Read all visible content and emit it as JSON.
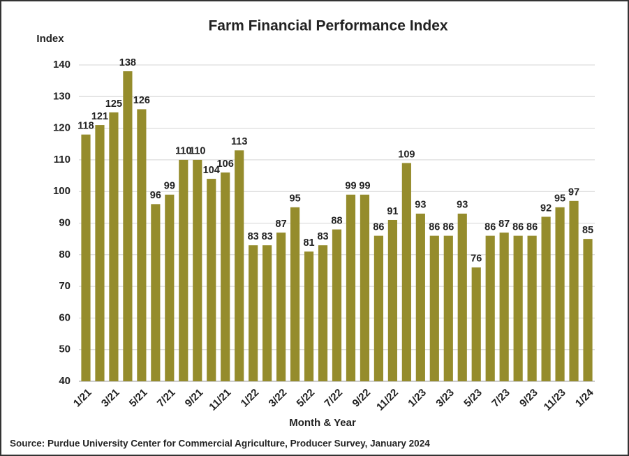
{
  "chart_data": {
    "type": "bar",
    "title": "Farm Financial Performance Index",
    "y_label": "Index",
    "x_label": "Month & Year",
    "source": "Source: Purdue University Center for Commercial Agriculture, Producer Survey, January 2024",
    "categories": [
      "1/21",
      null,
      "3/21",
      null,
      "5/21",
      null,
      "7/21",
      null,
      "9/21",
      null,
      "11/21",
      null,
      "1/22",
      null,
      "3/22",
      null,
      "5/22",
      null,
      "7/22",
      null,
      "9/22",
      null,
      "11/22",
      null,
      "1/23",
      null,
      "3/23",
      null,
      "5/23",
      null,
      "7/23",
      null,
      "9/23",
      null,
      "11/23",
      null,
      "1/24"
    ],
    "values": [
      118,
      121,
      125,
      138,
      126,
      96,
      99,
      110,
      110,
      104,
      106,
      113,
      83,
      83,
      87,
      95,
      81,
      83,
      88,
      99,
      99,
      86,
      91,
      109,
      93,
      86,
      86,
      93,
      76,
      86,
      87,
      86,
      86,
      92,
      95,
      97,
      85
    ],
    "color": "#958c2c",
    "ylim": [
      40,
      140
    ],
    "yticks": [
      40,
      50,
      60,
      70,
      80,
      90,
      100,
      110,
      120,
      130,
      140
    ],
    "grid": true
  }
}
